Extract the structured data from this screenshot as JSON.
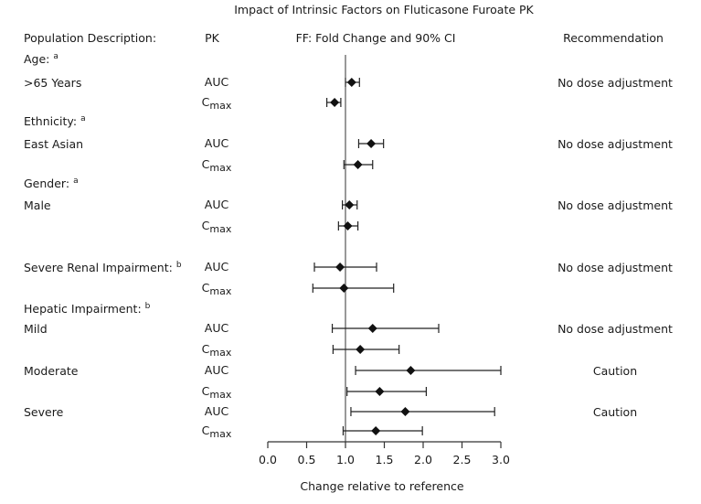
{
  "chart_data": {
    "type": "forest",
    "title": "Impact of Intrinsic Factors on Fluticasone Furoate PK",
    "column_headers": {
      "population": "Population Description:",
      "pk": "PK",
      "plot": "FF: Fold Change and 90% CI",
      "recommendation": "Recommendation"
    },
    "xlabel": "Change relative to reference",
    "xlim": [
      0.0,
      3.0
    ],
    "x_ticks": [
      0.0,
      0.5,
      1.0,
      1.5,
      2.0,
      2.5,
      3.0
    ],
    "x_tick_labels": [
      "0.0",
      "0.5",
      "1.0",
      "1.5",
      "2.0",
      "2.5",
      "3.0"
    ],
    "reference_line": 1.0,
    "groups": [
      {
        "header": "Age:",
        "footnote": "a",
        "subgroups": [
          {
            "label": ">65  Years",
            "recommendation": "No dose adjustment",
            "points": [
              {
                "pk": "AUC",
                "estimate": 1.08,
                "ci_low": 1.0,
                "ci_high": 1.18
              },
              {
                "pk": "Cmax",
                "estimate": 0.86,
                "ci_low": 0.76,
                "ci_high": 0.94
              }
            ]
          }
        ]
      },
      {
        "header": "Ethnicity:",
        "footnote": "a",
        "subgroups": [
          {
            "label": "East Asian",
            "recommendation": "No dose adjustment",
            "points": [
              {
                "pk": "AUC",
                "estimate": 1.33,
                "ci_low": 1.17,
                "ci_high": 1.49
              },
              {
                "pk": "Cmax",
                "estimate": 1.16,
                "ci_low": 0.98,
                "ci_high": 1.35
              }
            ]
          }
        ]
      },
      {
        "header": "Gender:",
        "footnote": "a",
        "subgroups": [
          {
            "label": "Male",
            "recommendation": "No dose adjustment",
            "points": [
              {
                "pk": "AUC",
                "estimate": 1.05,
                "ci_low": 0.96,
                "ci_high": 1.15
              },
              {
                "pk": "Cmax",
                "estimate": 1.03,
                "ci_low": 0.91,
                "ci_high": 1.16
              }
            ]
          }
        ]
      },
      {
        "header": "Severe Renal Impairment:",
        "footnote": "b",
        "header_recommendation": "No dose adjustment",
        "subgroups": [
          {
            "label": "",
            "recommendation": "",
            "points": [
              {
                "pk": "AUC",
                "estimate": 0.93,
                "ci_low": 0.6,
                "ci_high": 1.4
              },
              {
                "pk": "Cmax",
                "estimate": 0.98,
                "ci_low": 0.58,
                "ci_high": 1.62
              }
            ]
          }
        ]
      },
      {
        "header": "Hepatic Impairment:",
        "footnote": "b",
        "subgroups": [
          {
            "label": "Mild",
            "recommendation": "No dose adjustment",
            "points": [
              {
                "pk": "AUC",
                "estimate": 1.35,
                "ci_low": 0.83,
                "ci_high": 2.2
              },
              {
                "pk": "Cmax",
                "estimate": 1.19,
                "ci_low": 0.84,
                "ci_high": 1.69
              }
            ]
          },
          {
            "label": "Moderate",
            "recommendation": "Caution",
            "points": [
              {
                "pk": "AUC",
                "estimate": 1.84,
                "ci_low": 1.13,
                "ci_high": 3.0
              },
              {
                "pk": "Cmax",
                "estimate": 1.44,
                "ci_low": 1.02,
                "ci_high": 2.04
              }
            ]
          },
          {
            "label": "Severe",
            "recommendation": "Caution",
            "points": [
              {
                "pk": "AUC",
                "estimate": 1.77,
                "ci_low": 1.07,
                "ci_high": 2.92
              },
              {
                "pk": "Cmax",
                "estimate": 1.39,
                "ci_low": 0.97,
                "ci_high": 1.99
              }
            ]
          }
        ]
      }
    ]
  }
}
